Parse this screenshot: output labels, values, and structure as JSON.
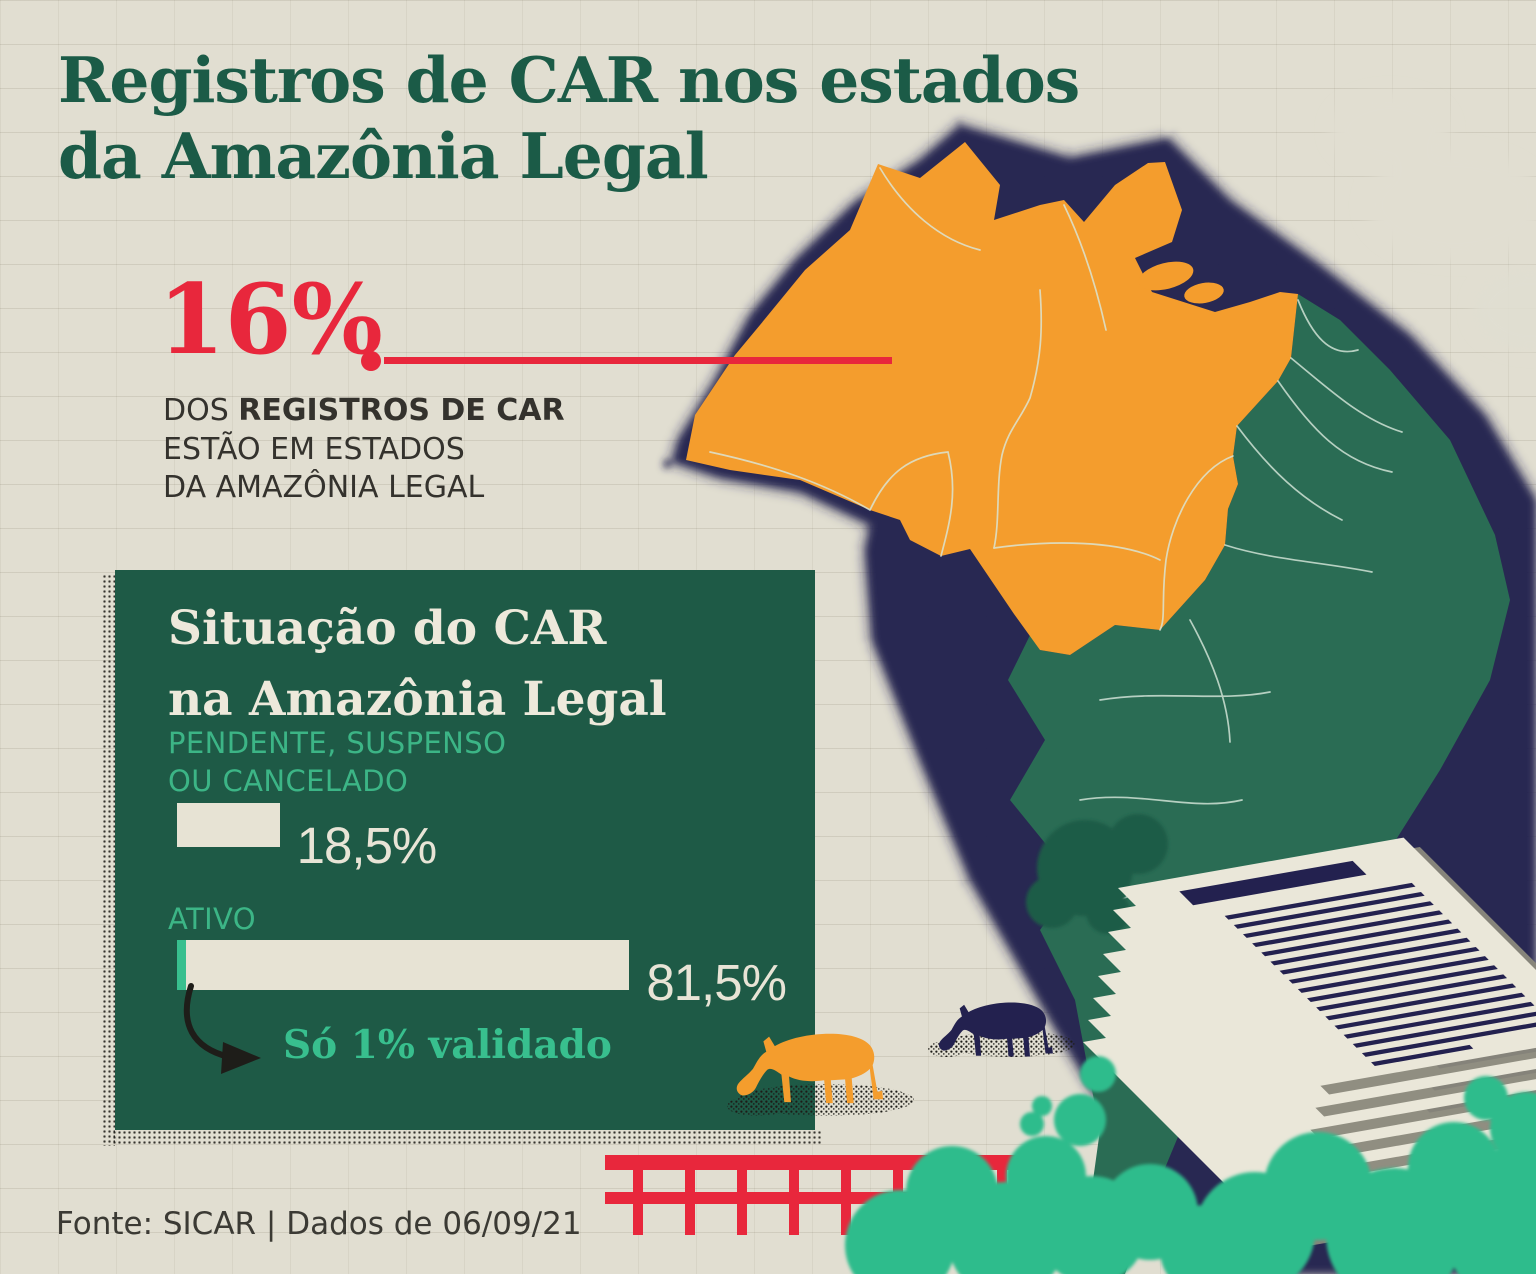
{
  "title": {
    "line1": "Registros de CAR nos estados",
    "line2": "da Amazônia Legal"
  },
  "stat": {
    "value": "16%",
    "line1_prefix": "DOS ",
    "line1_bold": "REGISTROS DE CAR",
    "line2": "ESTÃO EM ESTADOS",
    "line3": "DA AMAZÔNIA LEGAL"
  },
  "panel": {
    "title_line1": "Situação do CAR",
    "title_line2": "na Amazônia Legal",
    "label_pendente_line1": "PENDENTE, SUSPENSO",
    "label_pendente_line2": "OU CANCELADO",
    "label_ativo": "ATIVO",
    "annotation": "Só 1% validado"
  },
  "chart_data": {
    "type": "bar",
    "orientation": "horizontal",
    "title": "Situação do CAR na Amazônia Legal",
    "categories": [
      "Pendente, suspenso ou cancelado",
      "Ativo"
    ],
    "values": [
      18.5,
      81.5
    ],
    "display_values": [
      "18,5%",
      "81,5%"
    ],
    "validated_share_of_total_pct": 1,
    "annotation": "Só 1% validado",
    "xlim": [
      0,
      100
    ],
    "grid": false,
    "legend": false
  },
  "footer": {
    "source": "Fonte: SICAR | Dados de 06/09/21"
  },
  "illustrations": [
    "brazil-map-amazon-highlight",
    "orange-cow-icon",
    "navy-cow-icon",
    "document-stack-icon",
    "fence-icon",
    "trees-icon"
  ],
  "colors": {
    "bg": "#E1DED1",
    "title_green": "#1B5B47",
    "red": "#E8273C",
    "panel_green": "#1E5A46",
    "bar_beige": "#E7E3D4",
    "teal": "#3CB586",
    "teal_bright": "#38BF8E",
    "map_orange": "#F49D2D",
    "map_green": "#2A6C54",
    "navy": "#23214F",
    "paper": "#EAE7D9",
    "paper_shadow": "#8B897C",
    "ink": "#34322D"
  }
}
